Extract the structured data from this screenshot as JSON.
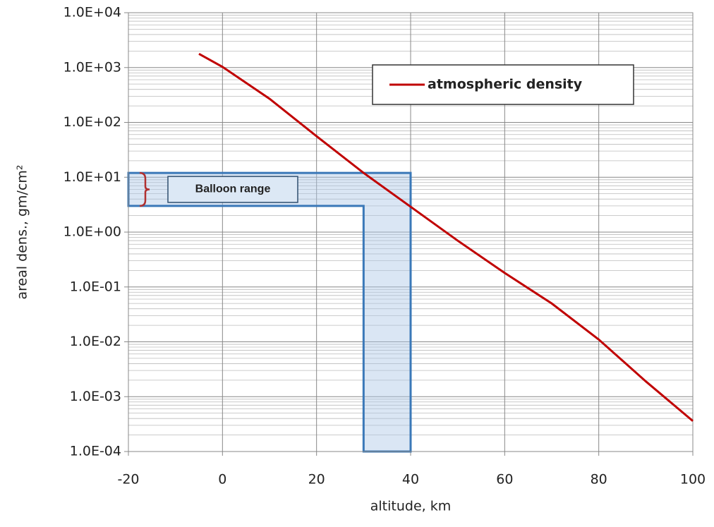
{
  "chart_data": {
    "type": "line",
    "x_label": "altitude, km",
    "y_label": "areal dens., gm/cm²",
    "xlim": [
      -20,
      100
    ],
    "xticks": [
      -20,
      0,
      20,
      40,
      60,
      80,
      100
    ],
    "ylim": [
      0.0001,
      10000
    ],
    "log_y": true,
    "grid": true,
    "minor_grid": true,
    "yticks": [
      {
        "value": 0.0001,
        "label": "1.0E-04"
      },
      {
        "value": 0.001,
        "label": "1.0E-03"
      },
      {
        "value": 0.01,
        "label": "1.0E-02"
      },
      {
        "value": 0.1,
        "label": "1.0E-01"
      },
      {
        "value": 1,
        "label": "1.0E+00"
      },
      {
        "value": 10,
        "label": "1.0E+01"
      },
      {
        "value": 100,
        "label": "1.0E+02"
      },
      {
        "value": 1000,
        "label": "1.0E+03"
      },
      {
        "value": 10000,
        "label": "1.0E+04"
      }
    ],
    "legend": "upper right",
    "x": [
      -5,
      0,
      10,
      20,
      30,
      40,
      50,
      60,
      70,
      80,
      90,
      100
    ],
    "series": [
      {
        "name": "atmospheric density",
        "color": "#c00000",
        "values": [
          1780,
          1030,
          270,
          56,
          12,
          2.9,
          0.7,
          0.18,
          0.05,
          0.011,
          0.0019,
          0.00036
        ]
      }
    ],
    "annotation": {
      "text": "Balloon range",
      "x": [
        30,
        40
      ],
      "y": [
        3,
        12
      ]
    }
  }
}
